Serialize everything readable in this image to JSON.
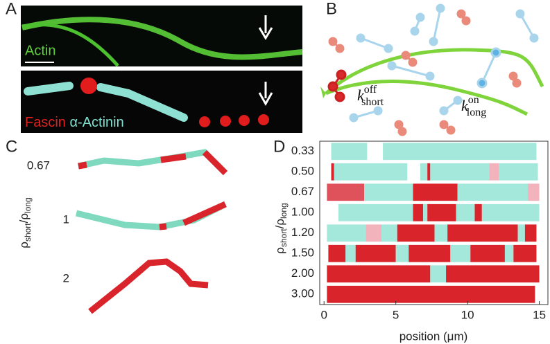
{
  "panel_labels": [
    "A",
    "B",
    "C",
    "D"
  ],
  "panel_a": {
    "top_label": "Actin",
    "bottom_label_1": "Fascin",
    "bottom_label_2": "α-Actinin"
  },
  "panel_b": {
    "k_off": {
      "symbol": "k",
      "sup": "off",
      "sub": "short"
    },
    "k_on": {
      "symbol": "k",
      "sup": "on",
      "sub": "long"
    }
  },
  "panel_c": {
    "ylabel": {
      "rho": "ρ",
      "short": "short",
      "slash": "/ρ",
      "long": "long"
    },
    "ratios": [
      "0.67",
      "1",
      "2"
    ]
  },
  "chart_data": {
    "type": "segments",
    "categories": [
      "0.33",
      "0.50",
      "0.67",
      "1.00",
      "1.20",
      "1.50",
      "2.00",
      "3.00"
    ],
    "ylabel": {
      "rho": "ρ",
      "short": "short",
      "slash": "/ρ",
      "long": "long"
    },
    "xlabel": "position (μm)",
    "xlim": [
      -0.3,
      15.6
    ],
    "xticks": [
      0,
      5,
      10,
      15
    ],
    "rows": [
      {
        "segments": [
          {
            "start": 0.5,
            "end": 3.0,
            "color": "#a4e8dc"
          },
          {
            "start": 4.1,
            "end": 14.8,
            "color": "#a4e8dc"
          }
        ]
      },
      {
        "segments": [
          {
            "start": 0.5,
            "end": 0.7,
            "color": "#d9242c"
          },
          {
            "start": 0.7,
            "end": 5.8,
            "color": "#a4e8dc"
          },
          {
            "start": 6.7,
            "end": 7.2,
            "color": "#a4e8dc"
          },
          {
            "start": 7.2,
            "end": 7.4,
            "color": "#d9242c"
          },
          {
            "start": 7.4,
            "end": 11.5,
            "color": "#a4e8dc"
          },
          {
            "start": 11.5,
            "end": 12.2,
            "color": "#f3b3bd"
          },
          {
            "start": 12.2,
            "end": 14.9,
            "color": "#a4e8dc"
          }
        ]
      },
      {
        "segments": [
          {
            "start": 0.2,
            "end": 2.8,
            "color": "#e0525b"
          },
          {
            "start": 2.8,
            "end": 6.2,
            "color": "#a4e8dc"
          },
          {
            "start": 6.2,
            "end": 9.3,
            "color": "#d9242c"
          },
          {
            "start": 9.3,
            "end": 14.2,
            "color": "#a4e8dc"
          },
          {
            "start": 14.2,
            "end": 15.0,
            "color": "#f3b3bd"
          }
        ]
      },
      {
        "segments": [
          {
            "start": 1.0,
            "end": 6.2,
            "color": "#a4e8dc"
          },
          {
            "start": 6.2,
            "end": 6.9,
            "color": "#d9242c"
          },
          {
            "start": 6.9,
            "end": 7.2,
            "color": "#a4e8dc"
          },
          {
            "start": 7.2,
            "end": 9.2,
            "color": "#d9242c"
          },
          {
            "start": 9.2,
            "end": 10.5,
            "color": "#a4e8dc"
          },
          {
            "start": 10.5,
            "end": 11.0,
            "color": "#d9242c"
          },
          {
            "start": 11.0,
            "end": 15.0,
            "color": "#a4e8dc"
          }
        ]
      },
      {
        "segments": [
          {
            "start": 0.2,
            "end": 2.9,
            "color": "#a4e8dc"
          },
          {
            "start": 2.9,
            "end": 4.0,
            "color": "#f3b3bd"
          },
          {
            "start": 4.0,
            "end": 5.1,
            "color": "#a4e8dc"
          },
          {
            "start": 5.1,
            "end": 7.7,
            "color": "#d9242c"
          },
          {
            "start": 7.7,
            "end": 8.6,
            "color": "#a4e8dc"
          },
          {
            "start": 8.6,
            "end": 13.5,
            "color": "#d9242c"
          },
          {
            "start": 13.5,
            "end": 14.0,
            "color": "#a4e8dc"
          },
          {
            "start": 14.0,
            "end": 14.8,
            "color": "#d9242c"
          }
        ]
      },
      {
        "segments": [
          {
            "start": 0.3,
            "end": 1.5,
            "color": "#d9242c"
          },
          {
            "start": 1.5,
            "end": 2.2,
            "color": "#a4e8dc"
          },
          {
            "start": 2.2,
            "end": 5.0,
            "color": "#d9242c"
          },
          {
            "start": 5.0,
            "end": 5.9,
            "color": "#a4e8dc"
          },
          {
            "start": 5.9,
            "end": 8.8,
            "color": "#d9242c"
          },
          {
            "start": 8.8,
            "end": 10.2,
            "color": "#a4e8dc"
          },
          {
            "start": 10.2,
            "end": 12.6,
            "color": "#d9242c"
          },
          {
            "start": 12.6,
            "end": 13.2,
            "color": "#a4e8dc"
          },
          {
            "start": 13.2,
            "end": 14.8,
            "color": "#d9242c"
          }
        ]
      },
      {
        "segments": [
          {
            "start": 0.2,
            "end": 7.4,
            "color": "#d9242c"
          },
          {
            "start": 7.4,
            "end": 8.5,
            "color": "#a4e8dc"
          },
          {
            "start": 8.5,
            "end": 15.0,
            "color": "#d9242c"
          }
        ]
      },
      {
        "segments": [
          {
            "start": 0.2,
            "end": 14.7,
            "color": "#d9242c"
          }
        ]
      }
    ]
  }
}
